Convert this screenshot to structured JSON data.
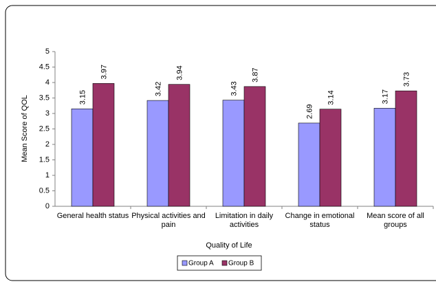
{
  "chart_data": {
    "type": "bar",
    "categories": [
      "General health status",
      "Physical activities and pain",
      "Limitation in daily activities",
      "Change in emotional status",
      "Mean score of all groups"
    ],
    "series": [
      {
        "name": "Group A",
        "color": "#9999ff",
        "values": [
          3.15,
          3.42,
          3.43,
          2.69,
          3.17
        ]
      },
      {
        "name": "Group B",
        "color": "#993366",
        "values": [
          3.97,
          3.94,
          3.87,
          3.14,
          3.73
        ]
      }
    ],
    "xlabel": "Quality of Life",
    "ylabel": "Mean Score of QOL",
    "ylim": [
      0,
      5
    ],
    "yticks": [
      0,
      0.5,
      1,
      1.5,
      2,
      2.5,
      3,
      3.5,
      4,
      4.5,
      5
    ],
    "grid": false,
    "legend": "bottom"
  }
}
